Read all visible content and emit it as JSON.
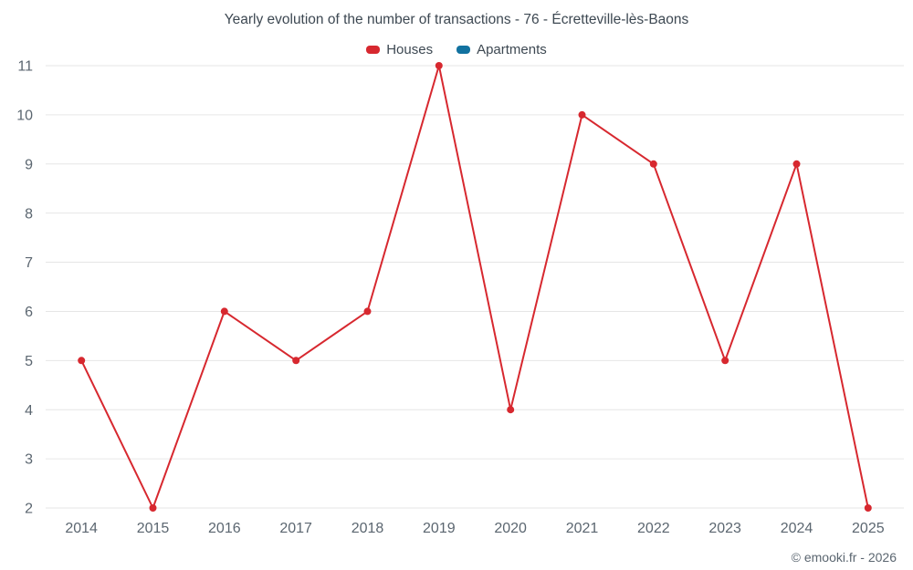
{
  "title": "Yearly evolution of the number of transactions - 76 - Écretteville-lès-Baons",
  "legend": [
    {
      "label": "Houses",
      "color": "#d7282f"
    },
    {
      "label": "Apartments",
      "color": "#1272a0"
    }
  ],
  "footer": "© emooki.fr - 2026",
  "colors": {
    "houses": "#d7282f",
    "apartments": "#1272a0",
    "gridline": "#e6e6e6",
    "axis_text": "#5b6670",
    "title_text": "#3d4852"
  },
  "chart_data": {
    "type": "line",
    "title": "Yearly evolution of the number of transactions - 76 - Écretteville-lès-Baons",
    "categories": [
      "2014",
      "2015",
      "2016",
      "2017",
      "2018",
      "2019",
      "2020",
      "2021",
      "2022",
      "2023",
      "2024",
      "2025"
    ],
    "series": [
      {
        "name": "Houses",
        "color": "#d7282f",
        "values": [
          5,
          2,
          6,
          5,
          6,
          11,
          4,
          10,
          9,
          5,
          9,
          2
        ]
      },
      {
        "name": "Apartments",
        "color": "#1272a0",
        "values": []
      }
    ],
    "xlabel": "",
    "ylabel": "",
    "ylim": [
      2,
      11
    ],
    "yticks": [
      2,
      3,
      4,
      5,
      6,
      7,
      8,
      9,
      10,
      11
    ],
    "grid": true,
    "legend_position": "top"
  }
}
